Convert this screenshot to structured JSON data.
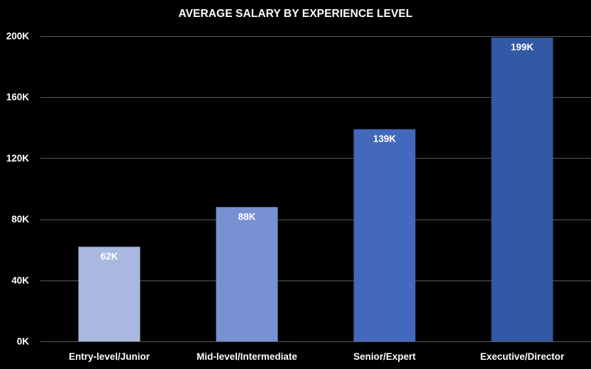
{
  "chart_data": {
    "type": "bar",
    "title": "AVERAGE SALARY BY EXPERIENCE LEVEL",
    "xlabel": "",
    "ylabel": "",
    "categories": [
      "Entry-level/Junior",
      "Mid-level/Intermediate",
      "Senior/Expert",
      "Executive/Director"
    ],
    "values": [
      62000,
      88000,
      139000,
      199000
    ],
    "data_labels": [
      "62K",
      "88K",
      "139K",
      "199K"
    ],
    "ylim": [
      0,
      200000
    ],
    "yticks": [
      0,
      40000,
      80000,
      120000,
      160000,
      200000
    ],
    "ytick_labels": [
      "0K",
      "40K",
      "80K",
      "120K",
      "160K",
      "200K"
    ],
    "grid": true,
    "legend": "none",
    "colors": {
      "background": "#000000",
      "gridline": "#5a5a5a",
      "text": "#ffffff",
      "bars": [
        "#a9b8df",
        "#7891d3",
        "#4369bd",
        "#3259a5"
      ]
    }
  }
}
